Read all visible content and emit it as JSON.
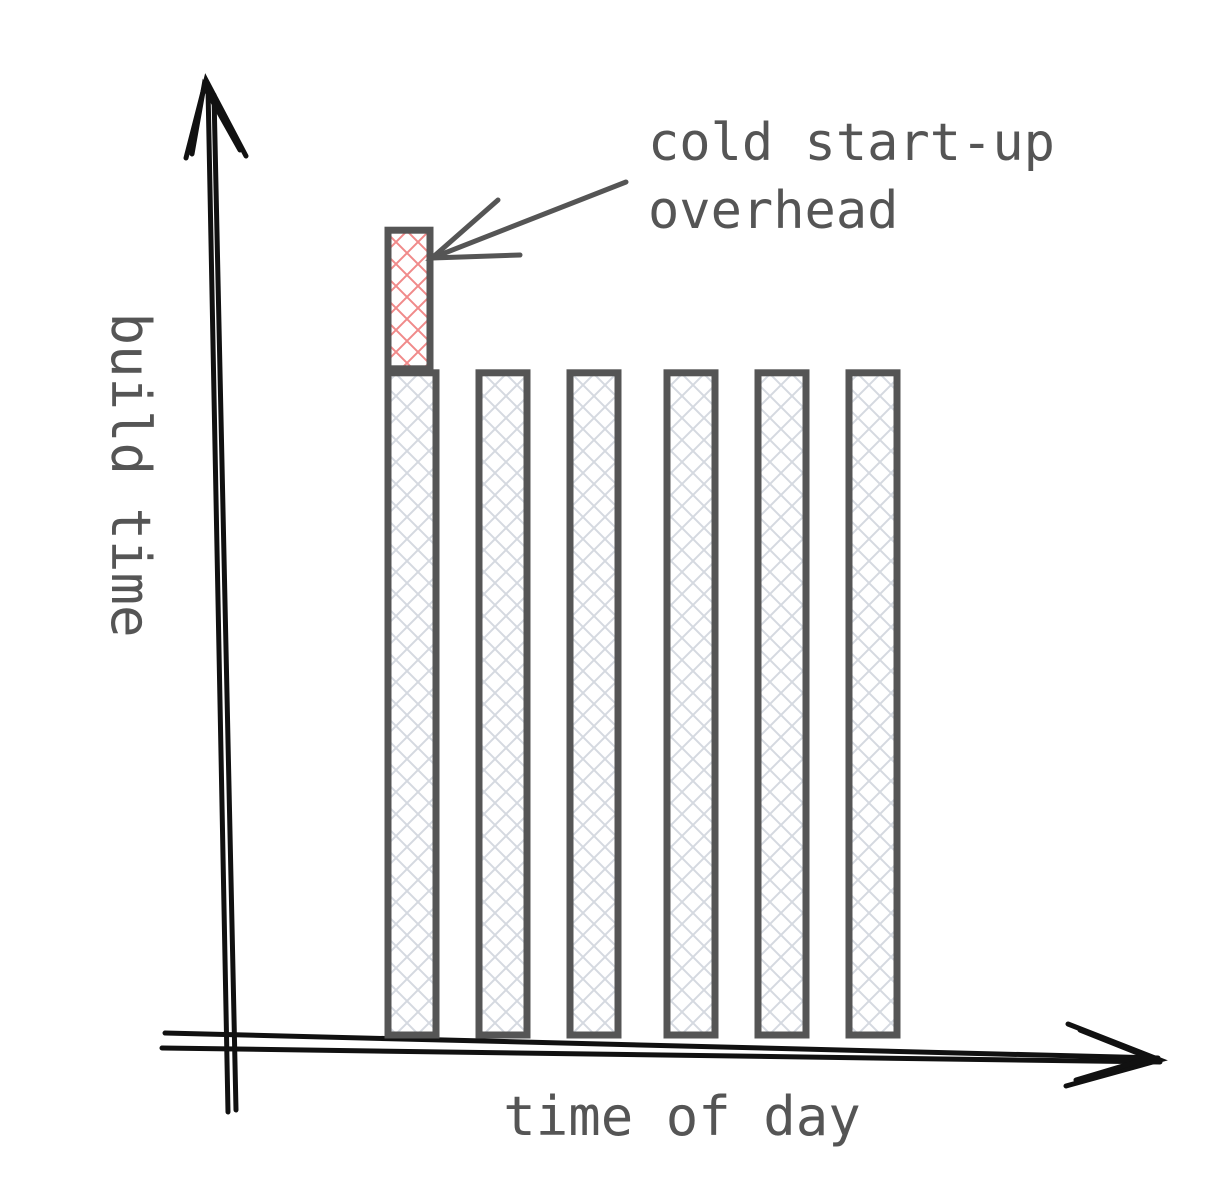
{
  "diagram": {
    "y_axis_label": "build time",
    "x_axis_label": "time of day",
    "annotation": {
      "line1": "cold start-up",
      "line2": "overhead"
    },
    "bars": [
      {
        "base": 0.86,
        "overhead": 0.18
      },
      {
        "base": 0.86,
        "overhead": 0
      },
      {
        "base": 0.86,
        "overhead": 0
      },
      {
        "base": 0.86,
        "overhead": 0
      },
      {
        "base": 0.86,
        "overhead": 0
      },
      {
        "base": 0.86,
        "overhead": 0
      }
    ],
    "colors": {
      "axis": "#111111",
      "bar_outline": "#555555",
      "bar_hatch": "#d5d9e0",
      "overhead_hatch": "#f08a8a",
      "text": "#555555"
    }
  }
}
